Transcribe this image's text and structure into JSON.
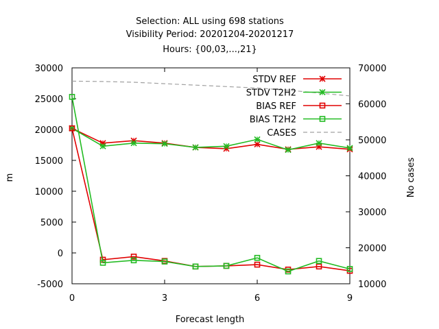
{
  "chart_data": {
    "type": "line",
    "title_lines": [
      "Selection: ALL using   698 stations",
      "Visibility   Period: 20201204-20201217",
      "Hours: {00,03,...,21}"
    ],
    "xlabel": "Forecast length",
    "ylabel": "m",
    "y2label": "No cases",
    "xlim": [
      0,
      9
    ],
    "ylim": [
      -5000,
      30000
    ],
    "y2lim": [
      10000,
      70000
    ],
    "x_ticks": [
      0,
      3,
      6,
      9
    ],
    "y_ticks": [
      -5000,
      0,
      5000,
      10000,
      15000,
      20000,
      25000,
      30000
    ],
    "y2_ticks": [
      10000,
      20000,
      30000,
      40000,
      50000,
      60000,
      70000
    ],
    "legend_position": "top-right",
    "x": [
      0,
      1,
      2,
      3,
      4,
      5,
      6,
      7,
      8,
      9
    ],
    "series": [
      {
        "name": "STDV REF",
        "axis": "left",
        "color": "#e00000",
        "marker": "x",
        "values": [
          20200,
          17800,
          18200,
          17800,
          17100,
          16900,
          17600,
          16800,
          17200,
          16800
        ]
      },
      {
        "name": "STDV T2H2",
        "axis": "left",
        "color": "#22bb22",
        "marker": "x",
        "values": [
          20200,
          17300,
          17800,
          17700,
          17100,
          17300,
          18400,
          16700,
          17800,
          17000
        ]
      },
      {
        "name": "BIAS REF",
        "axis": "left",
        "color": "#e00000",
        "marker": "square",
        "values": [
          20200,
          -1100,
          -600,
          -1300,
          -2200,
          -2100,
          -1900,
          -2700,
          -2200,
          -2900
        ]
      },
      {
        "name": "BIAS T2H2",
        "axis": "left",
        "color": "#22bb22",
        "marker": "square",
        "values": [
          25300,
          -1600,
          -1200,
          -1400,
          -2200,
          -2100,
          -800,
          -3000,
          -1300,
          -2600
        ]
      },
      {
        "name": "CASES",
        "axis": "right",
        "color": "#a0a0a0",
        "marker": "none",
        "dashed": true,
        "values": [
          66300,
          66200,
          66000,
          65600,
          65200,
          64800,
          64400,
          63800,
          63000,
          62200
        ]
      }
    ]
  }
}
